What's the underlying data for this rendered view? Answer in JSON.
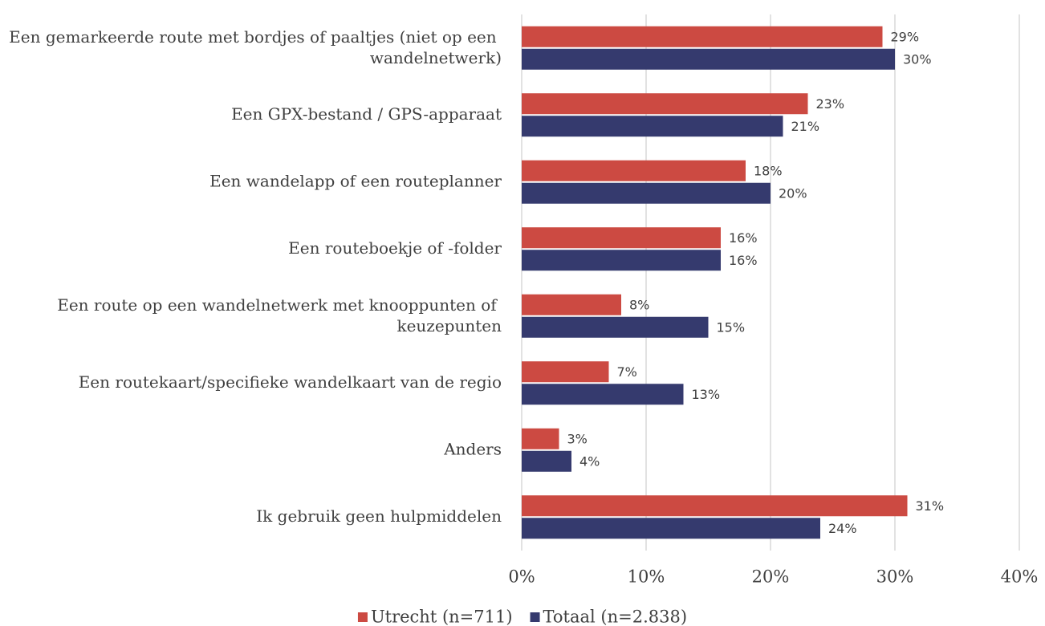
{
  "chart_data": {
    "type": "bar",
    "orientation": "horizontal",
    "categories": [
      "Een gemarkeerde route met bordjes of paaltjes (niet op een wandelnetwerk)",
      "Een GPX-bestand / GPS-apparaat",
      "Een wandelapp of een routeplanner",
      "Een routeboekje of -folder",
      "Een route op een wandelnetwerk met knooppunten of keuzepunten",
      "Een routekaart/specifieke wandelkaart van de regio",
      "Anders",
      "Ik gebruik geen hulpmiddelen"
    ],
    "series": [
      {
        "name": "Utrecht (n=711)",
        "color": "#cc4a42",
        "values": [
          29,
          23,
          18,
          16,
          8,
          7,
          3,
          31
        ],
        "value_labels": [
          "29%",
          "23%",
          "18%",
          "16%",
          "8%",
          "7%",
          "3%",
          "31%"
        ]
      },
      {
        "name": "Totaal (n=2.838)",
        "color": "#353a6e",
        "values": [
          30,
          21,
          20,
          16,
          15,
          13,
          4,
          24
        ],
        "value_labels": [
          "30%",
          "21%",
          "20%",
          "16%",
          "15%",
          "13%",
          "4%",
          "24%"
        ]
      }
    ],
    "xlim": [
      0,
      40
    ],
    "xticks": [
      {
        "value": 0,
        "label": "0%"
      },
      {
        "value": 10,
        "label": "10%"
      },
      {
        "value": 20,
        "label": "20%"
      },
      {
        "value": 30,
        "label": "30%"
      },
      {
        "value": 40,
        "label": "40%"
      }
    ],
    "grid": true,
    "legend": "bottom"
  }
}
